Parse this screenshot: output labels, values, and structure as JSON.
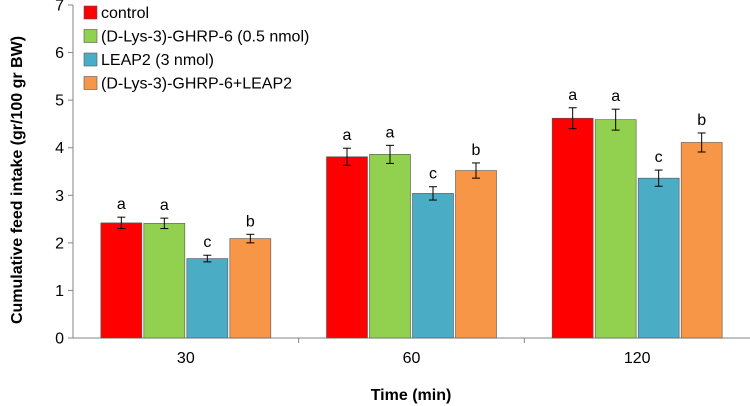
{
  "chart_data": {
    "type": "bar",
    "title": "",
    "xlabel": "Time (min)",
    "ylabel": "Cumulative feed intake (gr/100 gr BW)",
    "ylim": [
      0,
      7
    ],
    "yticks": [
      "0",
      "1",
      "2",
      "3",
      "4",
      "5",
      "6",
      "7"
    ],
    "categories": [
      "30",
      "60",
      "120"
    ],
    "grid": false,
    "legend_position": "top-left",
    "series": [
      {
        "name": "control",
        "color": "#ff0000",
        "values": [
          2.42,
          3.81,
          4.62
        ],
        "errors": [
          0.12,
          0.18,
          0.22
        ],
        "labels": [
          "a",
          "a",
          "a"
        ]
      },
      {
        "name": "(D-Lys-3)-GHRP-6 (0.5 nmol)",
        "color": "#92d050",
        "values": [
          2.41,
          3.86,
          4.59
        ],
        "errors": [
          0.11,
          0.19,
          0.22
        ],
        "labels": [
          "a",
          "a",
          "a"
        ]
      },
      {
        "name": "LEAP2 (3 nmol)",
        "color": "#4bacc6",
        "values": [
          1.67,
          3.04,
          3.36
        ],
        "errors": [
          0.07,
          0.14,
          0.17
        ],
        "labels": [
          "c",
          "c",
          "c"
        ]
      },
      {
        "name": "(D-Lys-3)-GHRP-6+LEAP2",
        "color": "#f79646",
        "values": [
          2.09,
          3.52,
          4.11
        ],
        "errors": [
          0.09,
          0.16,
          0.2
        ],
        "labels": [
          "b",
          "b",
          "b"
        ]
      }
    ]
  }
}
